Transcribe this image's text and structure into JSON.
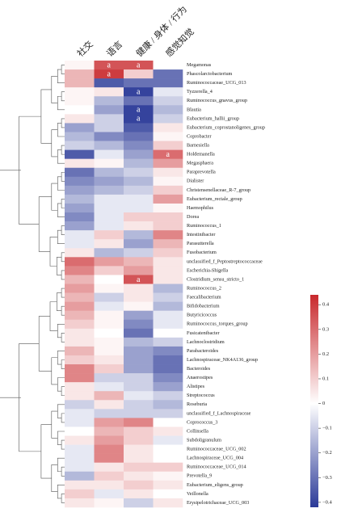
{
  "chart_data": {
    "type": "heatmap",
    "columns": [
      "社交",
      "语言",
      "健康 / 身体 / 行为",
      "感觉知觉"
    ],
    "rows": [
      "Megamonas",
      "Phascolarctobacterium",
      "Ruminococcaceae_UCG_013",
      "Tyzzerella_4",
      "Ruminococcus_gnavus_group",
      "Blautia",
      "Eubacterium_hallii_group",
      "Eubacterium_coprostanoligenes_group",
      "Coprobacter",
      "Barnesiella",
      "Holdemanella",
      "Megasphaera",
      "Paraprevotella",
      "Dialister",
      "Christensenellaceae_R-7_group",
      "Eubacterium_rectale_group",
      "Haemophilus",
      "Dorea",
      "Ruminococcus_1",
      "Intestinibacter",
      "Parasutterella",
      "Fusobacterium",
      "unclassified_f_Peptostreptococcaceae",
      "Escherichia-Shigella",
      "Clostridium_sensu_stricto_1",
      "Ruminococcus_2",
      "Faecalibacterium",
      "Bifidobacterium",
      "Butyricicoccus",
      "Ruminococcus_torques_group",
      "Fusicatenibacter",
      "Lachnoclostridium",
      "Parabacteroides",
      "Lachnospiraceae_NK4A136_group",
      "Bacteroides",
      "Anaerostipes",
      "Alistipes",
      "Streptococcus",
      "Roseburia",
      "unclassified_f_Lachnospiraceae",
      "Coprococcus_3",
      "Collinsella",
      "Subdoligranulum",
      "Ruminococcaceae_UCG_002",
      "Lachnospiraceae_UCG_004",
      "Ruminococcaceae_UCG_014",
      "Prevotella_9",
      "Eubacterium_eligens_group",
      "Veillonella",
      "Erysipelotrichaceae_UCG_003"
    ],
    "values": [
      [
        0.02,
        0.35,
        0.35,
        0.0
      ],
      [
        0.15,
        0.4,
        0.1,
        -0.3
      ],
      [
        0.15,
        -0.35,
        -0.3,
        -0.3
      ],
      [
        0.02,
        0.05,
        -0.4,
        -0.05
      ],
      [
        0.02,
        -0.15,
        -0.3,
        -0.1
      ],
      [
        0.0,
        -0.2,
        -0.4,
        -0.15
      ],
      [
        0.05,
        -0.1,
        -0.4,
        -0.1
      ],
      [
        -0.2,
        -0.1,
        -0.35,
        0.05
      ],
      [
        -0.15,
        -0.25,
        -0.3,
        0.02
      ],
      [
        -0.1,
        -0.15,
        -0.25,
        0.1
      ],
      [
        -0.35,
        -0.05,
        -0.2,
        0.3
      ],
      [
        0.05,
        0.02,
        -0.15,
        0.2
      ],
      [
        -0.3,
        -0.15,
        -0.1,
        0.05
      ],
      [
        -0.25,
        -0.2,
        -0.15,
        0.02
      ],
      [
        -0.2,
        -0.15,
        -0.1,
        0.1
      ],
      [
        -0.15,
        -0.05,
        -0.05,
        0.2
      ],
      [
        -0.2,
        -0.05,
        -0.05,
        0.02
      ],
      [
        -0.25,
        -0.05,
        0.1,
        0.1
      ],
      [
        -0.2,
        -0.05,
        0.05,
        0.1
      ],
      [
        -0.05,
        0.1,
        -0.15,
        0.25
      ],
      [
        -0.05,
        0.05,
        -0.2,
        0.15
      ],
      [
        0.05,
        -0.15,
        -0.1,
        0.1
      ],
      [
        0.3,
        0.2,
        0.15,
        0.05
      ],
      [
        0.25,
        0.1,
        0.2,
        0.05
      ],
      [
        0.15,
        0.0,
        0.35,
        0.05
      ],
      [
        0.2,
        0.02,
        0.05,
        -0.15
      ],
      [
        0.15,
        -0.1,
        0.05,
        -0.1
      ],
      [
        0.2,
        -0.05,
        0.02,
        -0.15
      ],
      [
        0.15,
        0.02,
        -0.2,
        -0.05
      ],
      [
        0.1,
        0.02,
        -0.25,
        -0.05
      ],
      [
        0.05,
        0.0,
        -0.3,
        0.0
      ],
      [
        0.05,
        0.02,
        -0.15,
        -0.1
      ],
      [
        0.15,
        0.02,
        -0.2,
        -0.25
      ],
      [
        0.1,
        0.05,
        -0.2,
        -0.3
      ],
      [
        0.25,
        0.1,
        -0.2,
        -0.3
      ],
      [
        0.25,
        -0.1,
        -0.1,
        -0.25
      ],
      [
        0.05,
        -0.05,
        -0.1,
        -0.2
      ],
      [
        0.05,
        0.15,
        -0.05,
        -0.1
      ],
      [
        -0.1,
        0.05,
        -0.1,
        -0.15
      ],
      [
        -0.05,
        -0.1,
        -0.1,
        -0.1
      ],
      [
        -0.05,
        0.2,
        0.25,
        0.0
      ],
      [
        0.0,
        0.15,
        0.1,
        0.05
      ],
      [
        0.05,
        0.2,
        0.1,
        -0.05
      ],
      [
        -0.05,
        0.25,
        0.05,
        0.0
      ],
      [
        -0.05,
        0.25,
        0.05,
        0.0
      ],
      [
        -0.05,
        0.05,
        0.1,
        0.1
      ],
      [
        -0.15,
        0.1,
        0.05,
        0.02
      ],
      [
        0.05,
        0.05,
        0.1,
        0.05
      ],
      [
        0.1,
        -0.05,
        0.05,
        0.0
      ],
      [
        0.05,
        0.02,
        -0.1,
        0.05
      ]
    ],
    "cell_labels": [
      [
        null,
        "a",
        "a",
        null
      ],
      [
        null,
        "a",
        null,
        null
      ],
      [
        null,
        null,
        null,
        null
      ],
      [
        null,
        null,
        "a",
        null
      ],
      [
        null,
        null,
        null,
        null
      ],
      [
        null,
        null,
        "a",
        null
      ],
      [
        null,
        null,
        "a",
        null
      ],
      [
        null,
        null,
        null,
        null
      ],
      [
        null,
        null,
        null,
        null
      ],
      [
        null,
        null,
        null,
        null
      ],
      [
        null,
        null,
        null,
        "a"
      ],
      [
        null,
        null,
        null,
        null
      ],
      [
        null,
        null,
        null,
        null
      ],
      [
        null,
        null,
        null,
        null
      ],
      [
        null,
        null,
        null,
        null
      ],
      [
        null,
        null,
        null,
        null
      ],
      [
        null,
        null,
        null,
        null
      ],
      [
        null,
        null,
        null,
        null
      ],
      [
        null,
        null,
        null,
        null
      ],
      [
        null,
        null,
        null,
        null
      ],
      [
        null,
        null,
        null,
        null
      ],
      [
        null,
        null,
        null,
        null
      ],
      [
        null,
        null,
        null,
        null
      ],
      [
        null,
        null,
        null,
        null
      ],
      [
        null,
        null,
        "a",
        null
      ],
      [
        null,
        null,
        null,
        null
      ],
      [
        null,
        null,
        null,
        null
      ],
      [
        null,
        null,
        null,
        null
      ],
      [
        null,
        null,
        null,
        null
      ],
      [
        null,
        null,
        null,
        null
      ],
      [
        null,
        null,
        null,
        null
      ],
      [
        null,
        null,
        null,
        null
      ],
      [
        null,
        null,
        null,
        null
      ],
      [
        null,
        null,
        null,
        null
      ],
      [
        null,
        null,
        null,
        null
      ],
      [
        null,
        null,
        null,
        null
      ],
      [
        null,
        null,
        null,
        null
      ],
      [
        null,
        null,
        null,
        null
      ],
      [
        null,
        null,
        null,
        null
      ],
      [
        null,
        null,
        null,
        null
      ],
      [
        null,
        null,
        null,
        null
      ],
      [
        null,
        null,
        null,
        null
      ],
      [
        null,
        null,
        null,
        null
      ],
      [
        null,
        null,
        null,
        null
      ],
      [
        null,
        null,
        null,
        null
      ],
      [
        null,
        null,
        null,
        null
      ],
      [
        null,
        null,
        null,
        null
      ],
      [
        null,
        null,
        null,
        null
      ],
      [
        null,
        null,
        null,
        null
      ],
      [
        null,
        null,
        null,
        null
      ]
    ],
    "colors": [
      "#2b3a98",
      "#ffffff",
      "#c8282c"
    ],
    "clim": [
      -0.42,
      0.44
    ],
    "cticks": [
      0.4,
      0.3,
      0.2,
      0.1,
      0,
      {
        "value": -0.1,
        "label": "−0.1"
      },
      {
        "value": -0.2,
        "label": "−0.2"
      },
      {
        "value": -0.3,
        "label": "−0.3"
      },
      {
        "value": -0.4,
        "label": "−0.4"
      }
    ]
  }
}
